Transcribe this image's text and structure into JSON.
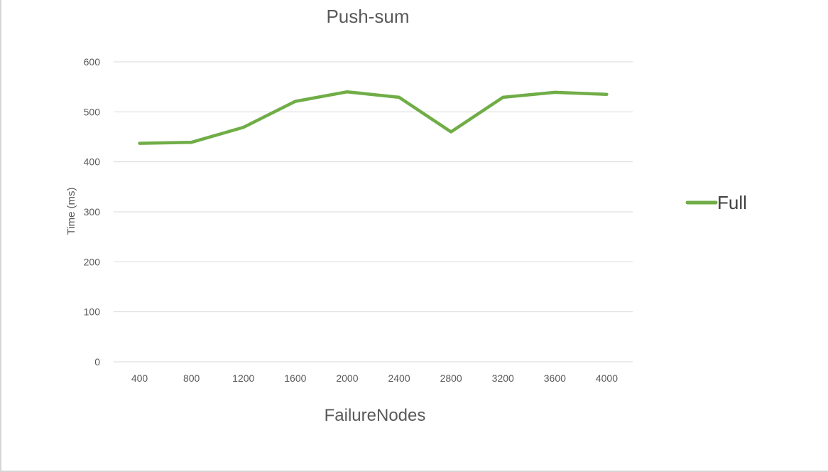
{
  "chart_data": {
    "type": "line",
    "title": "Push-sum",
    "xlabel": "FailureNodes",
    "ylabel": "Time (ms)",
    "categories": [
      "400",
      "800",
      "1200",
      "1600",
      "2000",
      "2400",
      "2800",
      "3200",
      "3600",
      "4000"
    ],
    "series": [
      {
        "name": "Full",
        "color": "#70ad47",
        "values": [
          437,
          439,
          469,
          521,
          540,
          529,
          460,
          529,
          539,
          535
        ]
      }
    ],
    "ylim": [
      0,
      600
    ],
    "yticks": [
      "0",
      "100",
      "200",
      "300",
      "400",
      "500",
      "600"
    ],
    "grid": true,
    "legend_position": "right",
    "gridline_color": "#d9d9d9"
  }
}
